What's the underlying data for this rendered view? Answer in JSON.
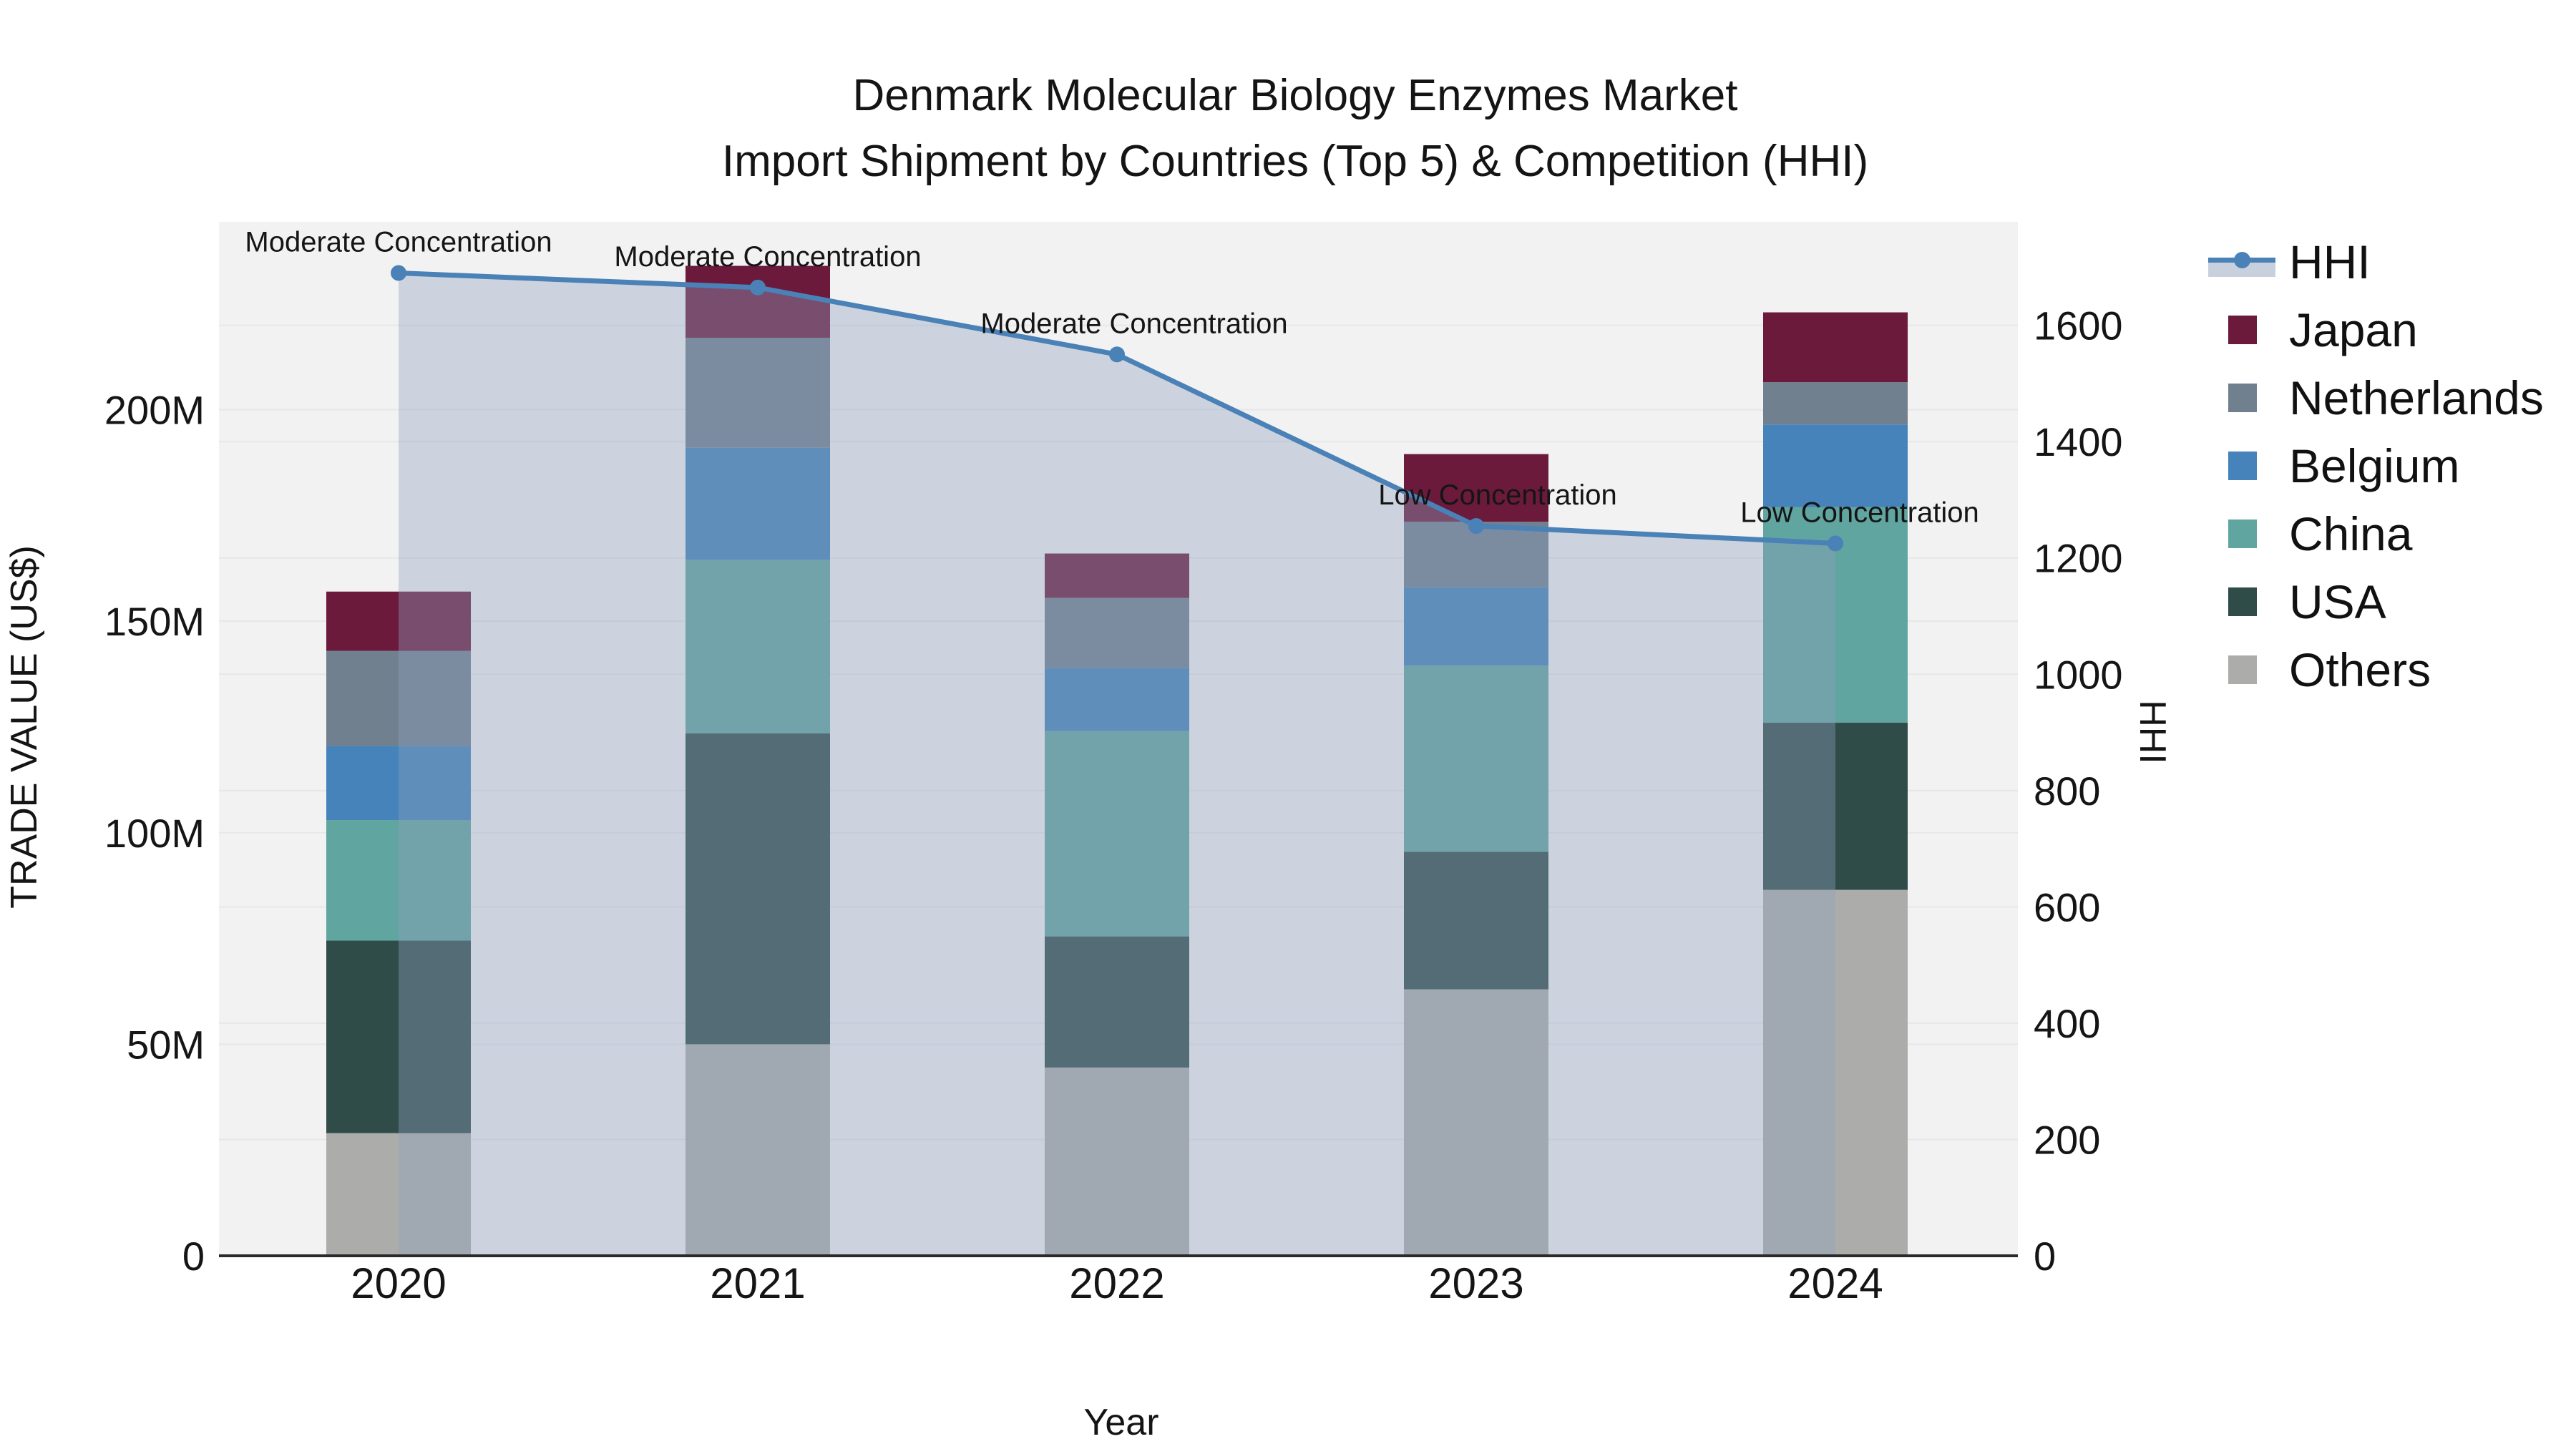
{
  "title": {
    "line1": "Denmark Molecular Biology Enzymes Market",
    "line2": "Import Shipment by Countries (Top 5) & Competition (HHI)"
  },
  "axes": {
    "x_label": "Year",
    "y_left_label": "TRADE VALUE (US$)",
    "y_right_label": "HHI"
  },
  "legend": {
    "items": [
      {
        "label": "HHI",
        "type": "line",
        "color": "#4a81b6",
        "band_color": "#c9d0dd"
      },
      {
        "label": "Japan",
        "type": "swatch",
        "color": "#6b1a3c"
      },
      {
        "label": "Netherlands",
        "type": "swatch",
        "color": "#71808f"
      },
      {
        "label": "Belgium",
        "type": "swatch",
        "color": "#4583ba"
      },
      {
        "label": "China",
        "type": "swatch",
        "color": "#61a5a1"
      },
      {
        "label": "USA",
        "type": "swatch",
        "color": "#2f4c49"
      },
      {
        "label": "Others",
        "type": "swatch",
        "color": "#acadaa"
      }
    ]
  },
  "chart_data": {
    "type": "bar",
    "subtype": "stacked-bars-with-line-overlay",
    "title": "Denmark Molecular Biology Enzymes Market — Import Shipment by Countries (Top 5) & Competition (HHI)",
    "xlabel": "Year",
    "ylabel_left": "TRADE VALUE (US$)",
    "ylabel_right": "HHI",
    "categories": [
      "2020",
      "2021",
      "2022",
      "2023",
      "2024"
    ],
    "value_unit": "M US$ (trade value, left axis)",
    "series": [
      {
        "name": "Others",
        "color": "#acadaa",
        "values": [
          29,
          50,
          44.5,
          63,
          86.5
        ]
      },
      {
        "name": "USA",
        "color": "#2f4c49",
        "values": [
          45.5,
          73.5,
          31,
          32.5,
          39.5
        ]
      },
      {
        "name": "China",
        "color": "#61a5a1",
        "values": [
          28.5,
          41,
          48.5,
          44,
          51
        ]
      },
      {
        "name": "Belgium",
        "color": "#4583ba",
        "values": [
          17.5,
          26.5,
          15,
          18.5,
          19.5
        ]
      },
      {
        "name": "Netherlands",
        "color": "#71808f",
        "values": [
          22.5,
          26,
          16.5,
          15.5,
          10
        ]
      },
      {
        "name": "Japan",
        "color": "#6b1a3c",
        "values": [
          14,
          17,
          10.5,
          16,
          16.5
        ]
      }
    ],
    "line_series": {
      "name": "HHI",
      "axis": "right",
      "color": "#4a81b6",
      "area_fill_color": "#8fa0bd",
      "area_fill_opacity": 0.38,
      "values": [
        1690,
        1665,
        1550,
        1255,
        1225
      ]
    },
    "annotations": [
      "Moderate Concentration",
      "Moderate Concentration",
      "Moderate Concentration",
      "Low Concentration",
      "Low Concentration"
    ],
    "y_left": {
      "tick_values": [
        0,
        50,
        100,
        150,
        200
      ],
      "tick_labels": [
        "0",
        "50M",
        "100M",
        "150M",
        "200M"
      ],
      "range": [
        0,
        244.4
      ]
    },
    "y_right": {
      "tick_values": [
        0,
        200,
        400,
        600,
        800,
        1000,
        1200,
        1400,
        1600
      ],
      "tick_labels": [
        "0",
        "200",
        "400",
        "600",
        "800",
        "1000",
        "1200",
        "1400",
        "1600"
      ],
      "range": [
        0,
        1778
      ]
    },
    "layout_hints": {
      "grid": "subtle horizontal",
      "legend_position": "right",
      "plot_background": "#f2f2f3"
    }
  }
}
